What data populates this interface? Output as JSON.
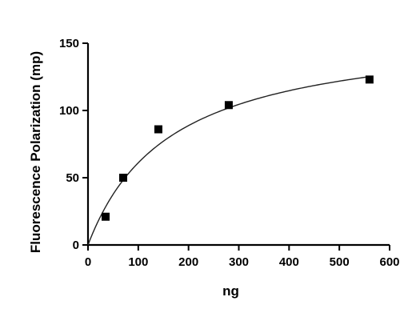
{
  "chart_data": {
    "type": "scatter",
    "title": "",
    "xlabel": "ng",
    "ylabel": "Fluorescence Polarization (mp)",
    "xlim": [
      0,
      600
    ],
    "ylim": [
      0,
      150
    ],
    "xticks": [
      0,
      100,
      200,
      300,
      400,
      500,
      600
    ],
    "yticks": [
      0,
      50,
      100,
      150
    ],
    "xtick_labels": [
      "0",
      "100",
      "200",
      "300",
      "400",
      "500",
      "600"
    ],
    "ytick_labels": [
      "0",
      "50",
      "100",
      "150"
    ],
    "grid": false,
    "legend": "none",
    "series": [
      {
        "marker": "square",
        "color": "#000000",
        "x": [
          35,
          70,
          140,
          280,
          560
        ],
        "y": [
          21,
          50,
          86,
          104,
          123
        ]
      }
    ],
    "fit": {
      "type": "hyperbolic",
      "color": "#222222",
      "bmax": 162,
      "kd": 165,
      "x_range": [
        0,
        560
      ]
    }
  }
}
